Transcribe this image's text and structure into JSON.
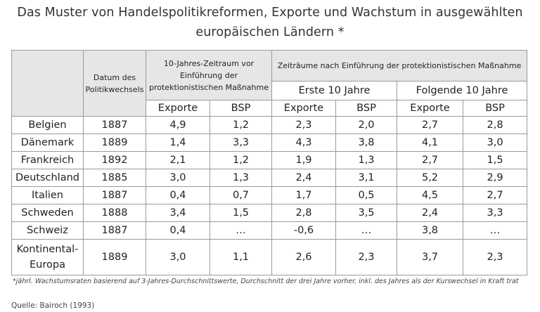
{
  "title": {
    "line1": "Das Muster von Handelspolitikreformen, Exporte und Wachstum in ausgewählten",
    "line2": "europäischen Ländern *"
  },
  "table": {
    "head": {
      "date": "Datum des Politikwechsels",
      "before": "10-Jahres-Zeitraum vor Einführung der protektionistischen Maßnahme",
      "after": "Zeiträume nach Einführung der protektionistischen Maßnahme",
      "first10": "Erste 10 Jahre",
      "next10": "Folgende 10 Jahre",
      "exports": "Exporte",
      "gnp": "BSP"
    },
    "rows": [
      {
        "country": "Belgien",
        "year": "1887",
        "v": [
          "4,9",
          "1,2",
          "2,3",
          "2,0",
          "2,7",
          "2,8"
        ]
      },
      {
        "country": "Dänemark",
        "year": "1889",
        "v": [
          "1,4",
          "3,3",
          "4,3",
          "3,8",
          "4,1",
          "3,0"
        ]
      },
      {
        "country": "Frankreich",
        "year": "1892",
        "v": [
          "2,1",
          "1,2",
          "1,9",
          "1,3",
          "2,7",
          "1,5"
        ]
      },
      {
        "country": "Deutschland",
        "year": "1885",
        "v": [
          "3,0",
          "1,3",
          "2,4",
          "3,1",
          "5,2",
          "2,9"
        ]
      },
      {
        "country": "Italien",
        "year": "1887",
        "v": [
          "0,4",
          "0,7",
          "1,7",
          "0,5",
          "4,5",
          "2,7"
        ]
      },
      {
        "country": "Schweden",
        "year": "1888",
        "v": [
          "3,4",
          "1,5",
          "2,8",
          "3,5",
          "2,4",
          "3,3"
        ]
      },
      {
        "country": "Schweiz",
        "year": "1887",
        "v": [
          "0,4",
          "…",
          "-0,6",
          "…",
          "3,8",
          "…"
        ]
      }
    ],
    "last_row": {
      "country_line1": "Kontinental-",
      "country_line2": "Europa",
      "year": "1889",
      "v": [
        "3,0",
        "1,1",
        "2,6",
        "2,3",
        "3,7",
        "2,3"
      ]
    }
  },
  "footnote": "*jährl. Wachstumsraten basierend auf 3-Jahres-Durchschnittswerte, Durchschnitt der drei Jahre vorher, inkl. des Jahres als der Kurswechsel in Kraft trat",
  "source": "Quelle: Bairoch (1993)"
}
